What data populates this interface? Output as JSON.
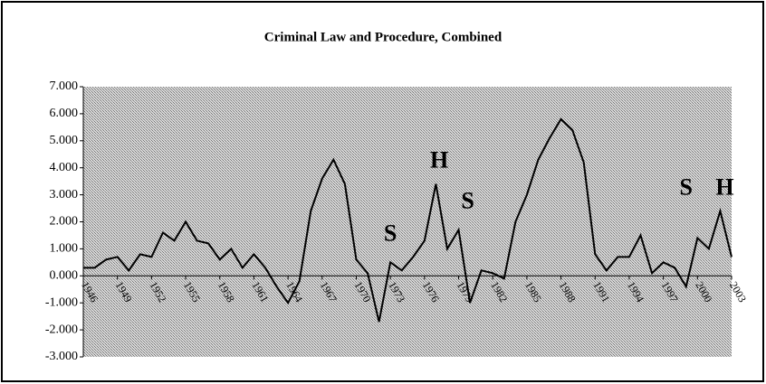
{
  "chart_data": {
    "type": "line",
    "title": "Criminal Law and Procedure, Combined",
    "x": [
      1946,
      1947,
      1948,
      1949,
      1950,
      1951,
      1952,
      1953,
      1954,
      1955,
      1956,
      1957,
      1958,
      1959,
      1960,
      1961,
      1962,
      1963,
      1964,
      1965,
      1966,
      1967,
      1968,
      1969,
      1970,
      1971,
      1972,
      1973,
      1974,
      1975,
      1976,
      1977,
      1978,
      1979,
      1980,
      1981,
      1982,
      1983,
      1984,
      1985,
      1986,
      1987,
      1988,
      1989,
      1990,
      1991,
      1992,
      1993,
      1994,
      1995,
      1996,
      1997,
      1998,
      1999,
      2000,
      2001,
      2002,
      2003
    ],
    "values": [
      0.3,
      0.3,
      0.6,
      0.7,
      0.2,
      0.8,
      0.7,
      1.6,
      1.3,
      2.0,
      1.3,
      1.2,
      0.6,
      1.0,
      0.3,
      0.8,
      0.3,
      -0.4,
      -1.0,
      -0.2,
      2.4,
      3.6,
      4.3,
      3.4,
      0.6,
      0.1,
      -1.7,
      0.5,
      0.2,
      0.7,
      1.3,
      3.4,
      1.0,
      1.7,
      -1.0,
      0.2,
      0.1,
      -0.1,
      2.0,
      3.0,
      4.3,
      5.1,
      5.8,
      5.4,
      4.2,
      0.8,
      0.2,
      0.7,
      0.7,
      1.5,
      0.1,
      0.5,
      0.3,
      -0.4,
      1.4,
      1.0,
      2.4,
      0.7
    ],
    "color": "#000000",
    "xlim": [
      1946,
      2003
    ],
    "xticks": [
      1946,
      1949,
      1952,
      1955,
      1958,
      1961,
      1964,
      1967,
      1970,
      1973,
      1976,
      1979,
      1982,
      1985,
      1988,
      1991,
      1994,
      1997,
      2000,
      2003
    ],
    "ylim": [
      -3,
      7
    ],
    "yticks": [
      {
        "value": -3,
        "label": "-3.000"
      },
      {
        "value": -2,
        "label": "-2.000"
      },
      {
        "value": -1,
        "label": "-1.000"
      },
      {
        "value": 0,
        "label": "0.000"
      },
      {
        "value": 1,
        "label": "1.000"
      },
      {
        "value": 2,
        "label": "2.000"
      },
      {
        "value": 3,
        "label": "3.000"
      },
      {
        "value": 4,
        "label": "4.000"
      },
      {
        "value": 5,
        "label": "5.000"
      },
      {
        "value": 6,
        "label": "6.000"
      },
      {
        "value": 7,
        "label": "7.000"
      }
    ],
    "annotations": [
      {
        "text": "S",
        "x": 1973,
        "y": 1.5
      },
      {
        "text": "H",
        "x": 1977.3,
        "y": 4.2
      },
      {
        "text": "S",
        "x": 1979.8,
        "y": 2.7
      },
      {
        "text": "S",
        "x": 1999,
        "y": 3.2
      },
      {
        "text": "H",
        "x": 2002.4,
        "y": 3.2
      }
    ]
  }
}
